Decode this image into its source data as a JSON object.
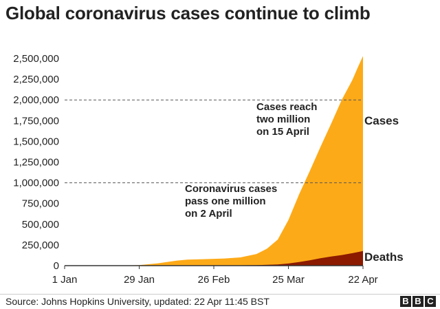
{
  "title": "Global coronavirus cases continue to climb",
  "source": "Source: Johns Hopkins University, updated: 22 Apr 11:45 BST",
  "logo": [
    "B",
    "B",
    "C"
  ],
  "colors": {
    "cases": "#fdaa18",
    "deaths": "#8b1a00",
    "axis": "#333333",
    "gridline": "#555555",
    "text": "#222222"
  },
  "chart_data": {
    "type": "area",
    "title": "Global coronavirus cases continue to climb",
    "x_tick_labels": [
      "1 Jan",
      "29 Jan",
      "26 Feb",
      "25 Mar",
      "22 Apr"
    ],
    "x_tick_days": [
      0,
      28,
      56,
      84,
      112
    ],
    "y_tick_labels": [
      "0",
      "250,000",
      "500,000",
      "750,000",
      "1,000,000",
      "1,250,000",
      "1,500,000",
      "1,750,000",
      "2,000,000",
      "2,250,000",
      "2,500,000"
    ],
    "ylim": [
      0,
      2500000
    ],
    "xlim_days": [
      0,
      112
    ],
    "grid": false,
    "reference_lines": [
      1000000,
      2000000
    ],
    "series": [
      {
        "name": "Cases",
        "days": [
          0,
          20,
          28,
          35,
          42,
          46,
          52,
          60,
          66,
          72,
          76,
          80,
          84,
          88,
          92,
          96,
          100,
          104,
          108,
          110,
          112
        ],
        "values": [
          0,
          0,
          6000,
          28000,
          60000,
          72000,
          78000,
          86000,
          100000,
          140000,
          205000,
          315000,
          550000,
          860000,
          1140000,
          1430000,
          1710000,
          2000000,
          2240000,
          2390000,
          2530000
        ]
      },
      {
        "name": "Deaths",
        "days": [
          0,
          60,
          72,
          80,
          84,
          88,
          92,
          96,
          100,
          104,
          108,
          112
        ],
        "values": [
          0,
          2500,
          5500,
          14000,
          26000,
          44000,
          65000,
          90000,
          110000,
          128000,
          150000,
          176000
        ]
      }
    ],
    "annotations": [
      {
        "lines": [
          "Cases reach",
          "two million",
          "on 15 April"
        ]
      },
      {
        "lines": [
          "Coronavirus cases",
          "pass one million",
          "on 2 April"
        ]
      }
    ]
  }
}
